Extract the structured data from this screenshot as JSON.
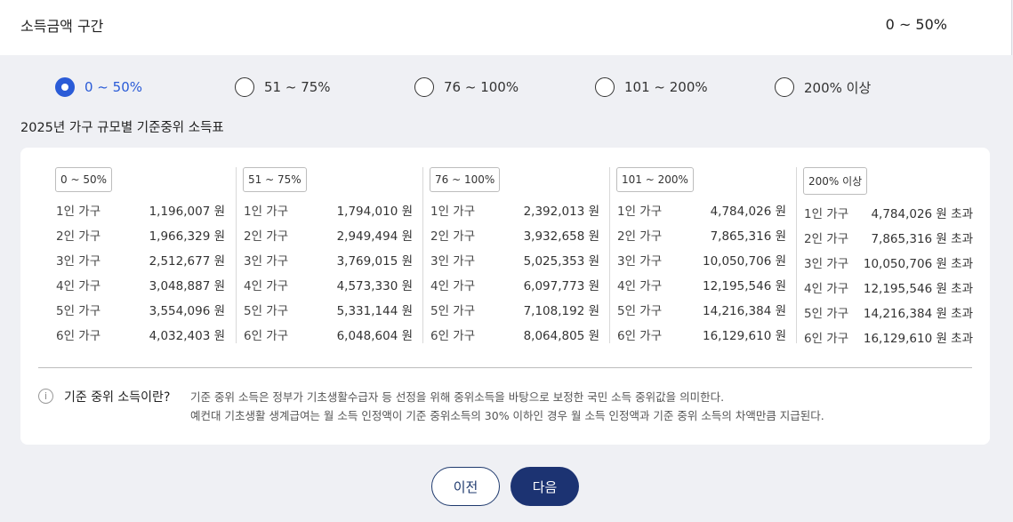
{
  "header": {
    "title": "소득금액 구간",
    "selected_value": "0 ~ 50%"
  },
  "options": [
    {
      "label": "0 ~ 50%",
      "selected": true
    },
    {
      "label": "51 ~ 75%",
      "selected": false
    },
    {
      "label": "76 ~ 100%",
      "selected": false
    },
    {
      "label": "101 ~ 200%",
      "selected": false
    },
    {
      "label": "200% 이상",
      "selected": false
    }
  ],
  "table_title": "2025년 가구 규모별 기준중위 소득표",
  "columns": [
    {
      "tag": "0 ~ 50%",
      "rows": [
        {
          "household": "1인 가구",
          "amount": "1,196,007 원"
        },
        {
          "household": "2인 가구",
          "amount": "1,966,329 원"
        },
        {
          "household": "3인 가구",
          "amount": "2,512,677 원"
        },
        {
          "household": "4인 가구",
          "amount": "3,048,887 원"
        },
        {
          "household": "5인 가구",
          "amount": "3,554,096 원"
        },
        {
          "household": "6인 가구",
          "amount": "4,032,403 원"
        }
      ]
    },
    {
      "tag": "51 ~ 75%",
      "rows": [
        {
          "household": "1인 가구",
          "amount": "1,794,010 원"
        },
        {
          "household": "2인 가구",
          "amount": "2,949,494 원"
        },
        {
          "household": "3인 가구",
          "amount": "3,769,015 원"
        },
        {
          "household": "4인 가구",
          "amount": "4,573,330 원"
        },
        {
          "household": "5인 가구",
          "amount": "5,331,144 원"
        },
        {
          "household": "6인 가구",
          "amount": "6,048,604 원"
        }
      ]
    },
    {
      "tag": "76 ~ 100%",
      "rows": [
        {
          "household": "1인 가구",
          "amount": "2,392,013 원"
        },
        {
          "household": "2인 가구",
          "amount": "3,932,658 원"
        },
        {
          "household": "3인 가구",
          "amount": "5,025,353 원"
        },
        {
          "household": "4인 가구",
          "amount": "6,097,773 원"
        },
        {
          "household": "5인 가구",
          "amount": "7,108,192 원"
        },
        {
          "household": "6인 가구",
          "amount": "8,064,805 원"
        }
      ]
    },
    {
      "tag": "101 ~ 200%",
      "rows": [
        {
          "household": "1인 가구",
          "amount": "4,784,026 원"
        },
        {
          "household": "2인 가구",
          "amount": "7,865,316 원"
        },
        {
          "household": "3인 가구",
          "amount": "10,050,706 원"
        },
        {
          "household": "4인 가구",
          "amount": "12,195,546 원"
        },
        {
          "household": "5인 가구",
          "amount": "14,216,384 원"
        },
        {
          "household": "6인 가구",
          "amount": "16,129,610 원"
        }
      ]
    },
    {
      "tag": "200% 이상",
      "rows": [
        {
          "household": "1인 가구",
          "amount": "4,784,026 원 초과"
        },
        {
          "household": "2인 가구",
          "amount": "7,865,316 원 초과"
        },
        {
          "household": "3인 가구",
          "amount": "10,050,706 원 초과"
        },
        {
          "household": "4인 가구",
          "amount": "12,195,546 원 초과"
        },
        {
          "household": "5인 가구",
          "amount": "14,216,384 원 초과"
        },
        {
          "household": "6인 가구",
          "amount": "16,129,610 원 초과"
        }
      ]
    }
  ],
  "info": {
    "icon": "info-icon",
    "label": "기준 중위 소득이란?",
    "line1": "기준 중위 소득은 정부가 기초생활수급자 등 선정을 위해 중위소득을 바탕으로 보정한 국민 소득 중위값을 의미한다.",
    "line2": "예컨대 기초생활 생계급여는 월 소득 인정액이 기준 중위소득의 30% 이하인 경우 월 소득 인정액과 기준 중위 소득의 차액만큼 지급된다."
  },
  "buttons": {
    "prev": "이전",
    "next": "다음"
  },
  "colors": {
    "accent": "#2a5bd7",
    "primary_button": "#1c3372"
  }
}
